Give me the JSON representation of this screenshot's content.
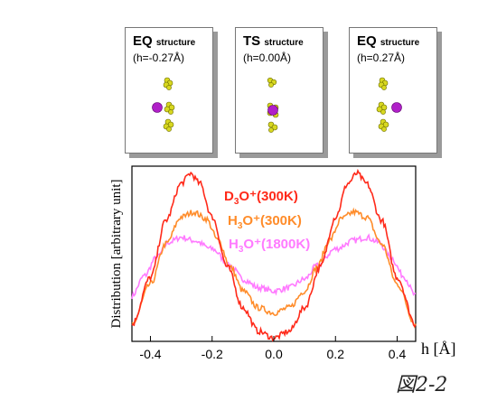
{
  "panels": [
    {
      "tag": "EQ",
      "suffix": "structure",
      "h": "(h=-0.27Å)"
    },
    {
      "tag": "TS",
      "suffix": "structure",
      "h": "(h=0.00Å)"
    },
    {
      "tag": "EQ",
      "suffix": "structure",
      "h": "(h=0.27Å)"
    }
  ],
  "figure_label": "図2-2",
  "chart_data": {
    "type": "line",
    "xlabel": "h [Å]",
    "ylabel": "Distribution [arbitrary unit]",
    "xlim": [
      -0.46,
      0.46
    ],
    "ylim": [
      0,
      1
    ],
    "xticks": [
      "-0.4",
      "-0.2",
      "0.0",
      "0.2",
      "0.4"
    ],
    "legend_position": "inside-center-top",
    "series": [
      {
        "name": "D3O+(300K)",
        "label_main": "D",
        "label_sub": "3",
        "label_rest": "O⁺(300K)",
        "color": "#ff2a1a",
        "x": [
          -0.46,
          -0.4,
          -0.35,
          -0.3,
          -0.27,
          -0.24,
          -0.2,
          -0.15,
          -0.1,
          -0.05,
          0.0,
          0.05,
          0.1,
          0.15,
          0.2,
          0.24,
          0.27,
          0.3,
          0.35,
          0.4,
          0.46
        ],
        "y": [
          0.1,
          0.38,
          0.72,
          0.94,
          1.0,
          0.94,
          0.74,
          0.44,
          0.2,
          0.06,
          0.02,
          0.06,
          0.2,
          0.44,
          0.74,
          0.94,
          1.0,
          0.94,
          0.72,
          0.38,
          0.1
        ]
      },
      {
        "name": "H3O+(300K)",
        "label_main": "H",
        "label_sub": "3",
        "label_rest": "O⁺(300K)",
        "color": "#ff8c2a",
        "x": [
          -0.46,
          -0.4,
          -0.35,
          -0.3,
          -0.26,
          -0.22,
          -0.18,
          -0.14,
          -0.1,
          -0.05,
          0.0,
          0.05,
          0.1,
          0.14,
          0.18,
          0.22,
          0.26,
          0.3,
          0.35,
          0.4,
          0.46
        ],
        "y": [
          0.1,
          0.34,
          0.58,
          0.74,
          0.77,
          0.73,
          0.6,
          0.44,
          0.3,
          0.2,
          0.17,
          0.2,
          0.3,
          0.44,
          0.6,
          0.73,
          0.77,
          0.74,
          0.58,
          0.34,
          0.1
        ]
      },
      {
        "name": "H3O+(1800K)",
        "label_main": "H",
        "label_sub": "3",
        "label_rest": "O⁺(1800K)",
        "color": "#ff7aff",
        "x": [
          -0.46,
          -0.42,
          -0.38,
          -0.34,
          -0.3,
          -0.26,
          -0.2,
          -0.14,
          -0.1,
          -0.05,
          0.0,
          0.05,
          0.1,
          0.14,
          0.2,
          0.26,
          0.3,
          0.34,
          0.38,
          0.42,
          0.46
        ],
        "y": [
          0.27,
          0.39,
          0.5,
          0.59,
          0.62,
          0.6,
          0.55,
          0.45,
          0.37,
          0.32,
          0.3,
          0.32,
          0.37,
          0.45,
          0.55,
          0.6,
          0.62,
          0.59,
          0.5,
          0.39,
          0.27
        ]
      }
    ]
  }
}
